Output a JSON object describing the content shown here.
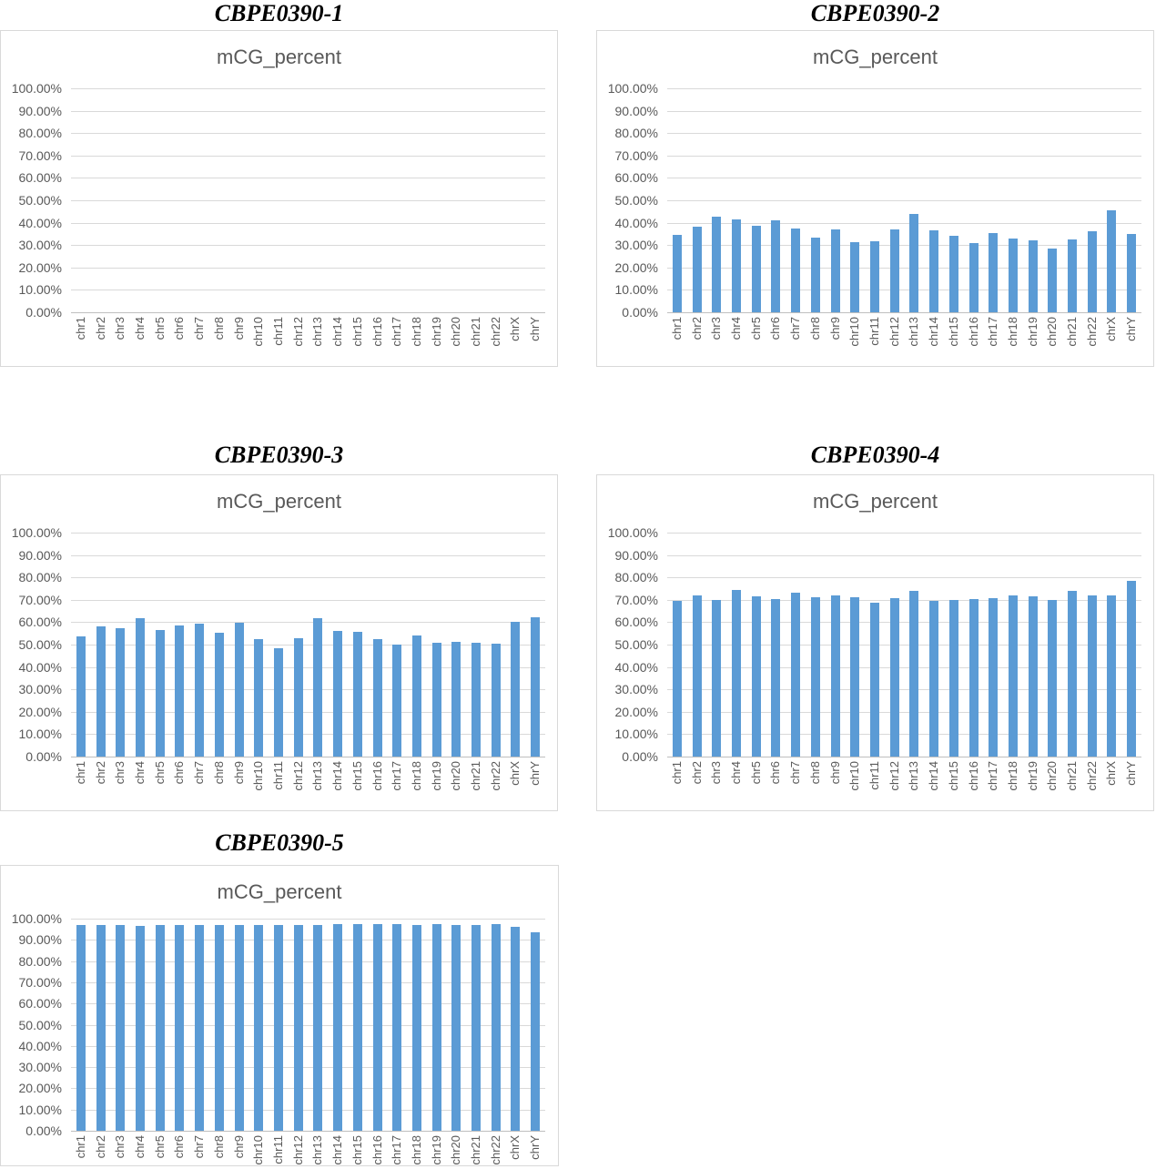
{
  "colors": {
    "bar": "#5b9bd5",
    "gridline": "#d9d9d9",
    "axis_line": "#bfbfbf",
    "label_text": "#595959",
    "chart_border": "#d9d9d9",
    "panel_title_text": "#000000",
    "background": "#ffffff"
  },
  "chart_data": [
    {
      "type": "bar",
      "panel_title": "CBPE0390-1",
      "title": "mCG_percent",
      "categories": [
        "chr1",
        "chr2",
        "chr3",
        "chr4",
        "chr5",
        "chr6",
        "chr7",
        "chr8",
        "chr9",
        "chr10",
        "chr11",
        "chr12",
        "chr13",
        "chr14",
        "chr15",
        "chr16",
        "chr17",
        "chr18",
        "chr19",
        "chr20",
        "chr21",
        "chr22",
        "chrX",
        "chrY"
      ],
      "values": [],
      "ylim": [
        0,
        100
      ],
      "y_ticks": [
        "100.00%",
        "90.00%",
        "80.00%",
        "70.00%",
        "60.00%",
        "50.00%",
        "40.00%",
        "30.00%",
        "20.00%",
        "10.00%",
        "0.00%"
      ],
      "grid": "horizontal",
      "legend": "none"
    },
    {
      "type": "bar",
      "panel_title": "CBPE0390-2",
      "title": "mCG_percent",
      "categories": [
        "chr1",
        "chr2",
        "chr3",
        "chr4",
        "chr5",
        "chr6",
        "chr7",
        "chr8",
        "chr9",
        "chr10",
        "chr11",
        "chr12",
        "chr13",
        "chr14",
        "chr15",
        "chr16",
        "chr17",
        "chr18",
        "chr19",
        "chr20",
        "chr21",
        "chr22",
        "chrX",
        "chrY"
      ],
      "values": [
        34.5,
        38.3,
        42.5,
        41.4,
        38.5,
        41.0,
        37.3,
        33.3,
        36.9,
        31.2,
        31.8,
        37.1,
        43.8,
        36.7,
        34.2,
        31.0,
        35.4,
        32.8,
        32.3,
        28.5,
        32.6,
        36.0,
        45.6,
        34.8
      ],
      "ylim": [
        0,
        100
      ],
      "y_ticks": [
        "100.00%",
        "90.00%",
        "80.00%",
        "70.00%",
        "60.00%",
        "50.00%",
        "40.00%",
        "30.00%",
        "20.00%",
        "10.00%",
        "0.00%"
      ],
      "grid": "horizontal",
      "legend": "none"
    },
    {
      "type": "bar",
      "panel_title": "CBPE0390-3",
      "title": "mCG_percent",
      "categories": [
        "chr1",
        "chr2",
        "chr3",
        "chr4",
        "chr5",
        "chr6",
        "chr7",
        "chr8",
        "chr9",
        "chr10",
        "chr11",
        "chr12",
        "chr13",
        "chr14",
        "chr15",
        "chr16",
        "chr17",
        "chr18",
        "chr19",
        "chr20",
        "chr21",
        "chr22",
        "chrX",
        "chrY"
      ],
      "values": [
        53.7,
        58.0,
        57.4,
        62.0,
        56.7,
        58.4,
        59.2,
        55.4,
        59.9,
        52.3,
        48.4,
        52.7,
        61.9,
        56.3,
        55.8,
        52.3,
        50.1,
        54.1,
        50.9,
        51.3,
        50.9,
        50.4,
        60.0,
        62.3
      ],
      "ylim": [
        0,
        100
      ],
      "y_ticks": [
        "100.00%",
        "90.00%",
        "80.00%",
        "70.00%",
        "60.00%",
        "50.00%",
        "40.00%",
        "30.00%",
        "20.00%",
        "10.00%",
        "0.00%"
      ],
      "grid": "horizontal",
      "legend": "none"
    },
    {
      "type": "bar",
      "panel_title": "CBPE0390-4",
      "title": "mCG_percent",
      "categories": [
        "chr1",
        "chr2",
        "chr3",
        "chr4",
        "chr5",
        "chr6",
        "chr7",
        "chr8",
        "chr9",
        "chr10",
        "chr11",
        "chr12",
        "chr13",
        "chr14",
        "chr15",
        "chr16",
        "chr17",
        "chr18",
        "chr19",
        "chr20",
        "chr21",
        "chr22",
        "chrX",
        "chrY"
      ],
      "values": [
        69.4,
        71.8,
        69.9,
        74.5,
        71.4,
        70.4,
        73.1,
        71.2,
        71.9,
        71.0,
        68.7,
        70.8,
        74.1,
        69.6,
        69.8,
        70.4,
        70.6,
        72.1,
        71.4,
        70.0,
        74.2,
        72.1,
        71.8,
        78.6
      ],
      "ylim": [
        0,
        100
      ],
      "y_ticks": [
        "100.00%",
        "90.00%",
        "80.00%",
        "70.00%",
        "60.00%",
        "50.00%",
        "40.00%",
        "30.00%",
        "20.00%",
        "10.00%",
        "0.00%"
      ],
      "grid": "horizontal",
      "legend": "none"
    },
    {
      "type": "bar",
      "panel_title": "CBPE0390-5",
      "title": "mCG_percent",
      "categories": [
        "chr1",
        "chr2",
        "chr3",
        "chr4",
        "chr5",
        "chr6",
        "chr7",
        "chr8",
        "chr9",
        "chr10",
        "chr11",
        "chr12",
        "chr13",
        "chr14",
        "chr15",
        "chr16",
        "chr17",
        "chr18",
        "chr19",
        "chr20",
        "chr21",
        "chr22",
        "chrX",
        "chrY"
      ],
      "values": [
        97.0,
        97.1,
        96.9,
        96.8,
        97.0,
        97.1,
        97.2,
        97.2,
        97.0,
        97.2,
        97.2,
        96.9,
        96.9,
        97.3,
        97.3,
        97.4,
        97.3,
        97.0,
        97.5,
        97.2,
        97.2,
        97.3,
        96.3,
        93.5
      ],
      "ylim": [
        0,
        100
      ],
      "y_ticks": [
        "100.00%",
        "90.00%",
        "80.00%",
        "70.00%",
        "60.00%",
        "50.00%",
        "40.00%",
        "30.00%",
        "20.00%",
        "10.00%",
        "0.00%"
      ],
      "grid": "horizontal",
      "legend": "none"
    }
  ]
}
